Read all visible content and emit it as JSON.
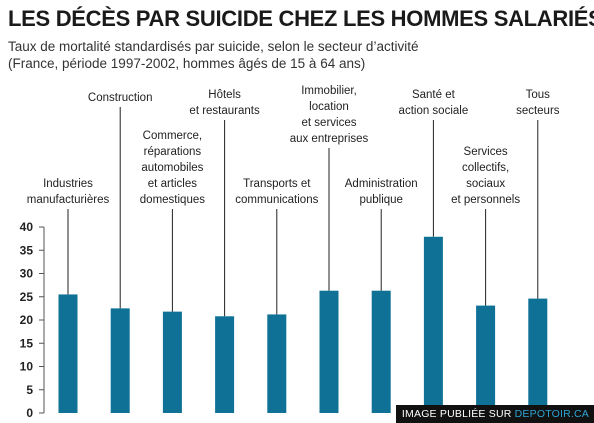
{
  "header": {
    "title": "LES DÉCÈS PAR SUICIDE CHEZ LES HOMMES SALARIÉS",
    "subtitle_line1": "Taux de mortalité standardisés par suicide, selon le secteur d’activité",
    "subtitle_line2": "(France, période 1997-2002, hommes âgés de 15 à 64 ans)"
  },
  "watermark": {
    "prefix": "IMAGE PUBLIÉE SUR ",
    "site": "DEPOTOIR.CA"
  },
  "colors": {
    "bar": "#0f7196",
    "axis": "#555555",
    "leader": "#222222"
  },
  "chart_data": {
    "type": "bar",
    "categories": [
      [
        "Industries",
        "manufacturières"
      ],
      [
        "Construction"
      ],
      [
        "Commerce,",
        "réparations",
        "automobiles",
        "et articles",
        "domestiques"
      ],
      [
        "Hôtels",
        "et restaurants"
      ],
      [
        "Transports et",
        "communications"
      ],
      [
        "Immobilier,",
        "location",
        "et services",
        "aux entreprises"
      ],
      [
        "Administration",
        "publique"
      ],
      [
        "Santé et",
        "action sociale"
      ],
      [
        "Services",
        "collectifs,",
        "sociaux",
        "et personnels"
      ],
      [
        "Tous",
        "secteurs"
      ]
    ],
    "values": [
      25.5,
      22.5,
      21.8,
      20.8,
      21.2,
      26.3,
      26.3,
      37.9,
      23.1,
      24.6
    ],
    "yticks": [
      0,
      5,
      10,
      15,
      20,
      25,
      30,
      35,
      40
    ],
    "ylim": [
      0,
      40
    ],
    "grid": false,
    "legend": "none"
  }
}
